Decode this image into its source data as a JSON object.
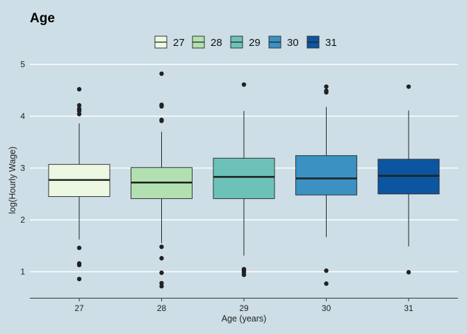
{
  "chart_data": {
    "type": "boxplot",
    "title": "Age",
    "xlabel": "Age (years)",
    "ylabel": "log(Hourly Wage)",
    "ylim": [
      0.5,
      5.05
    ],
    "yticks": [
      1,
      2,
      3,
      4,
      5
    ],
    "grid": "horizontal",
    "legend": {
      "position": "top",
      "entries": [
        "27",
        "28",
        "29",
        "30",
        "31"
      ]
    },
    "categories": [
      "27",
      "28",
      "29",
      "30",
      "31"
    ],
    "colors": [
      "#edf8e3",
      "#b2e0b0",
      "#6cc2b8",
      "#3a91c2",
      "#0c55a1"
    ],
    "series": [
      {
        "category": "27",
        "whisker_low": 1.62,
        "q1": 2.45,
        "median": 2.77,
        "q3": 3.07,
        "whisker_high": 3.86,
        "outliers": [
          4.52,
          4.21,
          4.14,
          4.1,
          4.04,
          1.46,
          1.16,
          1.13,
          0.86
        ]
      },
      {
        "category": "28",
        "whisker_low": 1.55,
        "q1": 2.41,
        "median": 2.72,
        "q3": 3.01,
        "whisker_high": 3.7,
        "outliers": [
          4.82,
          4.22,
          4.19,
          3.93,
          3.91,
          1.48,
          1.26,
          0.98,
          0.78,
          0.72
        ]
      },
      {
        "category": "29",
        "whisker_low": 1.31,
        "q1": 2.41,
        "median": 2.83,
        "q3": 3.19,
        "whisker_high": 4.1,
        "outliers": [
          4.61,
          1.05,
          1.02,
          0.99,
          0.94
        ]
      },
      {
        "category": "30",
        "whisker_low": 1.67,
        "q1": 2.48,
        "median": 2.8,
        "q3": 3.24,
        "whisker_high": 4.18,
        "outliers": [
          4.57,
          4.49,
          4.46,
          1.02,
          0.77
        ]
      },
      {
        "category": "31",
        "whisker_low": 1.49,
        "q1": 2.5,
        "median": 2.85,
        "q3": 3.17,
        "whisker_high": 4.11,
        "outliers": [
          4.57,
          0.99
        ]
      }
    ]
  }
}
